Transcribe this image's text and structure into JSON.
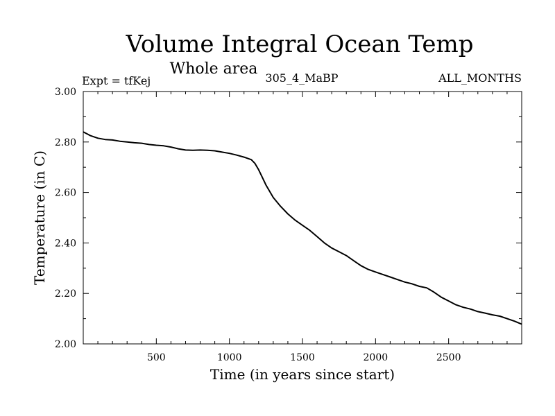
{
  "chart_data": {
    "type": "line",
    "title": "Volume Integral Ocean Temp",
    "subtitle": "Whole area",
    "experiment_label": "Expt = tfKej",
    "run_label": "305_4_MaBP",
    "period_label": "ALL_MONTHS",
    "xlabel": "Time (in years since start)",
    "ylabel": "Temperature (in C)",
    "xlim": [
      0,
      3000
    ],
    "ylim": [
      2.0,
      3.0
    ],
    "x_ticks": [
      500,
      1000,
      1500,
      2000,
      2500
    ],
    "x_tick_labels": [
      "500",
      "1000",
      "1500",
      "2000",
      "2500"
    ],
    "y_ticks": [
      2.0,
      2.2,
      2.4,
      2.6,
      2.8,
      3.0
    ],
    "y_tick_labels": [
      "2.00",
      "2.20",
      "2.40",
      "2.60",
      "2.80",
      "3.00"
    ],
    "grid": false,
    "series": [
      {
        "color": "#000000",
        "x": [
          0,
          50,
          100,
          150,
          200,
          250,
          300,
          350,
          400,
          450,
          500,
          550,
          600,
          650,
          700,
          750,
          800,
          850,
          900,
          950,
          1000,
          1050,
          1100,
          1150,
          1175,
          1200,
          1225,
          1250,
          1300,
          1350,
          1400,
          1450,
          1500,
          1550,
          1600,
          1650,
          1700,
          1750,
          1800,
          1850,
          1900,
          1950,
          2000,
          2050,
          2100,
          2150,
          2200,
          2250,
          2300,
          2350,
          2400,
          2450,
          2500,
          2550,
          2600,
          2650,
          2700,
          2750,
          2800,
          2850,
          2900,
          2950,
          3000
        ],
        "values": [
          2.84,
          2.825,
          2.815,
          2.81,
          2.808,
          2.803,
          2.8,
          2.797,
          2.795,
          2.79,
          2.787,
          2.785,
          2.78,
          2.773,
          2.768,
          2.767,
          2.768,
          2.767,
          2.765,
          2.76,
          2.755,
          2.748,
          2.74,
          2.73,
          2.715,
          2.69,
          2.66,
          2.63,
          2.58,
          2.545,
          2.515,
          2.49,
          2.47,
          2.45,
          2.425,
          2.4,
          2.38,
          2.365,
          2.35,
          2.33,
          2.31,
          2.295,
          2.285,
          2.275,
          2.265,
          2.255,
          2.245,
          2.238,
          2.228,
          2.222,
          2.205,
          2.185,
          2.17,
          2.155,
          2.145,
          2.138,
          2.128,
          2.122,
          2.115,
          2.11,
          2.1,
          2.09,
          2.078
        ]
      }
    ]
  }
}
